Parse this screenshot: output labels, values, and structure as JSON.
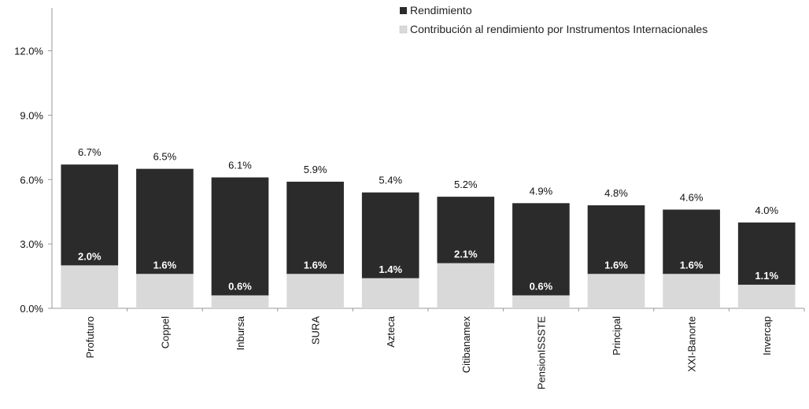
{
  "chart_data": {
    "type": "bar",
    "stacked": true,
    "categories": [
      "Profuturo",
      "Coppel",
      "Inbursa",
      "SURA",
      "Azteca",
      "Citibanamex",
      "PensionISSSTE",
      "Principal",
      "XXI-Banorte",
      "Invercap"
    ],
    "series": [
      {
        "name": "Rendimiento",
        "values": [
          6.7,
          6.5,
          6.1,
          5.9,
          5.4,
          5.2,
          4.9,
          4.8,
          4.6,
          4.0
        ],
        "labels": [
          "6.7%",
          "6.5%",
          "6.1%",
          "5.9%",
          "5.4%",
          "5.2%",
          "4.9%",
          "4.8%",
          "4.6%",
          "4.0%"
        ]
      },
      {
        "name": "Contribución al rendimiento por Instrumentos Internacionales",
        "values": [
          2.0,
          1.6,
          0.6,
          1.6,
          1.4,
          2.1,
          0.6,
          1.6,
          1.6,
          1.1
        ],
        "labels": [
          "2.0%",
          "1.6%",
          "0.6%",
          "1.6%",
          "1.4%",
          "2.1%",
          "0.6%",
          "1.6%",
          "1.6%",
          "1.1%"
        ]
      }
    ],
    "yticks": [
      "0.0%",
      "3.0%",
      "6.0%",
      "9.0%",
      "12.0%"
    ],
    "ytick_values": [
      0,
      3,
      6,
      9,
      12
    ],
    "ylim": [
      0,
      14
    ],
    "grid": false,
    "legend_position": "top-right",
    "colors": {
      "rendimiento": "#2b2b2b",
      "contribucion": "#d9d9d9"
    }
  }
}
